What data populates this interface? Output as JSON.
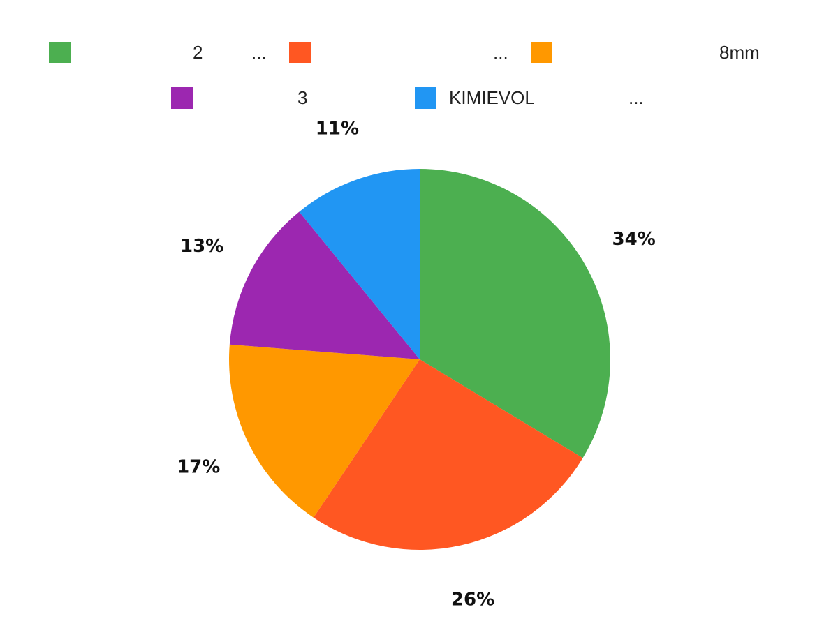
{
  "chart_data": {
    "type": "pie",
    "title": "",
    "legend_position": "top",
    "start_angle": "top, clockwise",
    "slices": [
      {
        "legend_text": "2",
        "legend_suffix": "...",
        "value": 34,
        "label": "34%",
        "color": "#4CAF50"
      },
      {
        "legend_text": "",
        "legend_suffix": "...",
        "value": 26,
        "label": "26%",
        "color": "#FF5722"
      },
      {
        "legend_text": "8mm",
        "legend_suffix": "",
        "value": 17,
        "label": "17%",
        "color": "#FF9800"
      },
      {
        "legend_text": "3",
        "legend_suffix": "",
        "value": 13,
        "label": "13%",
        "color": "#9C27B0"
      },
      {
        "legend_text": "KIMIEVOL",
        "legend_suffix": "...",
        "value": 11,
        "label": "11%",
        "color": "#2196F3"
      }
    ]
  }
}
